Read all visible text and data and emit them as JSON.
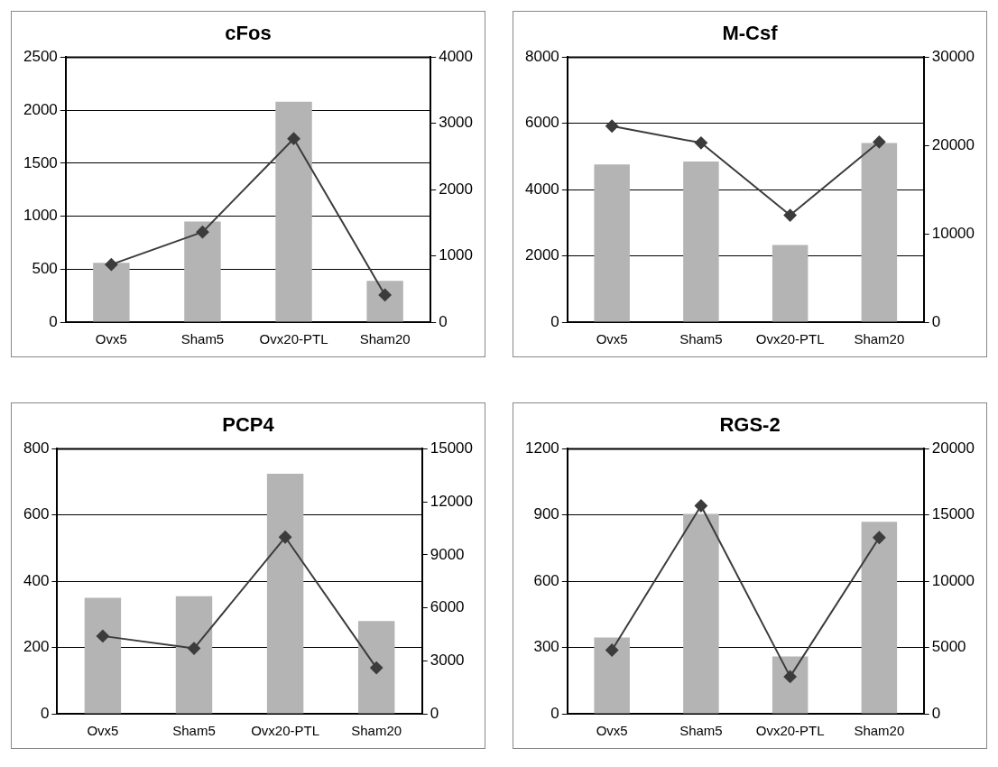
{
  "chart_data": [
    {
      "type": "bar",
      "title": "cFos",
      "categories": [
        "Ovx5",
        "Sham5",
        "Ovx20-PTL",
        "Sham20"
      ],
      "ylim": [
        0,
        2500
      ],
      "yticks": [
        0,
        500,
        1000,
        1500,
        2000,
        2500
      ],
      "y2lim": [
        0,
        4000
      ],
      "y2ticks": [
        0,
        1000,
        2000,
        3000,
        4000
      ],
      "grid": "y",
      "legend": false,
      "marker": "diamond",
      "series": [
        {
          "color": "#b4b4b4",
          "values": [
            560,
            950,
            2080,
            390
          ]
        },
        {
          "type": "line",
          "axis": "y2",
          "color": "#3c3c3c",
          "values": [
            870,
            1360,
            2770,
            410
          ]
        }
      ]
    },
    {
      "type": "bar",
      "title": "M-Csf",
      "categories": [
        "Ovx5",
        "Sham5",
        "Ovx20-PTL",
        "Sham20"
      ],
      "ylim": [
        0,
        8000
      ],
      "yticks": [
        0,
        2000,
        4000,
        6000,
        8000
      ],
      "y2lim": [
        0,
        30000
      ],
      "y2ticks": [
        0,
        10000,
        20000,
        30000
      ],
      "grid": "y",
      "legend": false,
      "marker": "diamond",
      "series": [
        {
          "color": "#b4b4b4",
          "values": [
            4760,
            4850,
            2330,
            5410
          ]
        },
        {
          "type": "line",
          "axis": "y2",
          "color": "#3c3c3c",
          "values": [
            22200,
            20300,
            12100,
            20400
          ]
        }
      ]
    },
    {
      "type": "bar",
      "title": "PCP4",
      "categories": [
        "Ovx5",
        "Sham5",
        "Ovx20-PTL",
        "Sham20"
      ],
      "ylim": [
        0,
        800
      ],
      "yticks": [
        0,
        200,
        400,
        600,
        800
      ],
      "y2lim": [
        0,
        15000
      ],
      "y2ticks": [
        0,
        3000,
        6000,
        9000,
        12000,
        15000
      ],
      "grid": "y",
      "legend": false,
      "marker": "diamond",
      "series": [
        {
          "color": "#b4b4b4",
          "values": [
            350,
            355,
            725,
            280
          ]
        },
        {
          "type": "line",
          "axis": "y2",
          "color": "#3c3c3c",
          "values": [
            4400,
            3700,
            10000,
            2600
          ]
        }
      ]
    },
    {
      "type": "bar",
      "title": "RGS-2",
      "categories": [
        "Ovx5",
        "Sham5",
        "Ovx20-PTL",
        "Sham20"
      ],
      "ylim": [
        0,
        1200
      ],
      "yticks": [
        0,
        300,
        600,
        900,
        1200
      ],
      "y2lim": [
        0,
        20000
      ],
      "y2ticks": [
        0,
        5000,
        10000,
        15000,
        20000
      ],
      "grid": "y",
      "legend": false,
      "marker": "diamond",
      "series": [
        {
          "color": "#b4b4b4",
          "values": [
            345,
            905,
            260,
            870
          ]
        },
        {
          "type": "line",
          "axis": "y2",
          "color": "#3c3c3c",
          "values": [
            4800,
            15700,
            2800,
            13300
          ]
        }
      ]
    }
  ]
}
